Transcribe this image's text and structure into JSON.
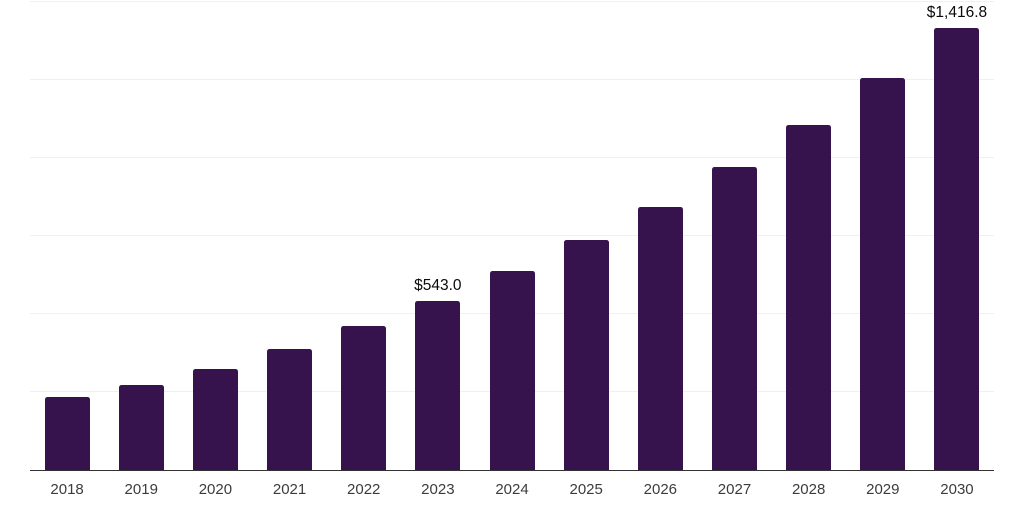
{
  "chart": {
    "background_color": "#ffffff",
    "bar_color": "#37134D",
    "gridline_color": "#f0f0f0",
    "axis_line_color": "#333333",
    "tick_label_color": "#3c3c3c",
    "value_label_color": "#0a0a0a"
  },
  "chart_data": {
    "type": "bar",
    "title": "",
    "xlabel": "",
    "ylabel": "",
    "categories": [
      "2018",
      "2019",
      "2020",
      "2021",
      "2022",
      "2023",
      "2024",
      "2025",
      "2026",
      "2027",
      "2028",
      "2029",
      "2030"
    ],
    "values": [
      234,
      272,
      324,
      388,
      461,
      543.0,
      638,
      737,
      843,
      971,
      1106,
      1256,
      1416.8
    ],
    "value_labels": {
      "2023": "$543.0",
      "2030": "$1,416.8"
    },
    "ylim": [
      0,
      1500
    ],
    "gridline_step": 250,
    "grid": true,
    "legend": false,
    "currency_prefix": "$"
  }
}
